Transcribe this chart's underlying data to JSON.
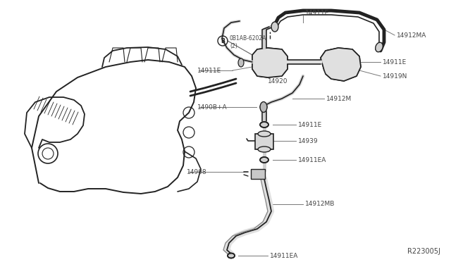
{
  "bg_color": "#ffffff",
  "line_color": "#222222",
  "label_color": "#444444",
  "leader_color": "#777777",
  "fig_width": 6.4,
  "fig_height": 3.72,
  "dpi": 100,
  "ref_text": "R223005J",
  "bolt_circle_text": "B",
  "bolt_text": "0B1AB-6202A",
  "bolt_text2": "(2)"
}
